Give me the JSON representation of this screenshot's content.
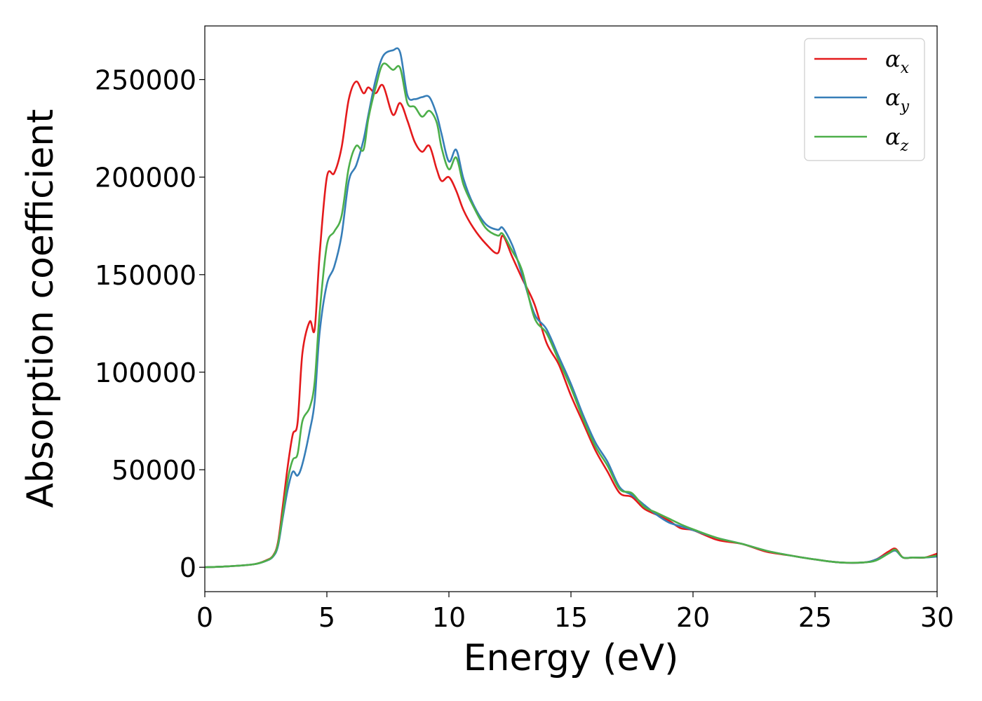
{
  "chart_data": {
    "type": "line",
    "xlabel": "Energy (eV)",
    "ylabel": "Absorption coefficient",
    "xlim": [
      0,
      30
    ],
    "ylim": [
      -12500,
      277500
    ],
    "xticks": [
      0,
      5,
      10,
      15,
      20,
      25,
      30
    ],
    "xtick_labels": [
      "0",
      "5",
      "10",
      "15",
      "20",
      "25",
      "30"
    ],
    "yticks": [
      0,
      50000,
      100000,
      150000,
      200000,
      250000
    ],
    "ytick_labels": [
      "0",
      "50000",
      "100000",
      "150000",
      "200000",
      "250000"
    ],
    "grid": false,
    "legend_position": "top-right",
    "series": [
      {
        "name": "α_x",
        "symbol": "α",
        "subscript": "x",
        "color": "#e41a1c",
        "x": [
          0,
          1,
          2,
          2.5,
          2.8,
          3.0,
          3.2,
          3.4,
          3.6,
          3.8,
          4.0,
          4.3,
          4.5,
          4.7,
          5.0,
          5.3,
          5.6,
          5.9,
          6.2,
          6.5,
          6.7,
          7.0,
          7.3,
          7.7,
          8.0,
          8.3,
          8.6,
          8.9,
          9.2,
          9.5,
          9.7,
          10.0,
          10.3,
          10.6,
          11.0,
          11.5,
          12.0,
          12.2,
          12.6,
          13.0,
          13.5,
          14.0,
          14.5,
          15.0,
          15.5,
          16.0,
          16.5,
          17.0,
          17.5,
          18.0,
          18.5,
          19.0,
          19.5,
          20.0,
          21.0,
          22.0,
          23.0,
          24.0,
          25.0,
          26.0,
          27.0,
          27.5,
          28.0,
          28.3,
          28.6,
          29.0,
          29.5,
          30.0
        ],
        "y": [
          0,
          500,
          1500,
          3500,
          6000,
          13000,
          32000,
          52000,
          68000,
          74000,
          110000,
          126000,
          122000,
          160000,
          200000,
          202000,
          215000,
          240000,
          249000,
          243000,
          246000,
          243000,
          247000,
          232000,
          238000,
          229000,
          218000,
          213000,
          216000,
          204000,
          198000,
          200000,
          193000,
          183000,
          174000,
          166000,
          161000,
          170000,
          159000,
          148000,
          135000,
          115000,
          104000,
          88000,
          74000,
          60000,
          49000,
          38000,
          36000,
          30000,
          27000,
          24000,
          20000,
          19000,
          14000,
          12000,
          8000,
          6000,
          4000,
          2500,
          2500,
          4000,
          8000,
          9500,
          5000,
          5000,
          5000,
          7000
        ]
      },
      {
        "name": "α_y",
        "symbol": "α",
        "subscript": "y",
        "color": "#377eb8",
        "x": [
          0,
          1,
          2,
          2.5,
          2.8,
          3.0,
          3.2,
          3.4,
          3.6,
          3.8,
          4.0,
          4.3,
          4.5,
          4.7,
          5.0,
          5.3,
          5.6,
          5.9,
          6.2,
          6.5,
          6.7,
          7.0,
          7.3,
          7.7,
          8.0,
          8.3,
          8.6,
          8.9,
          9.2,
          9.5,
          9.7,
          10.0,
          10.3,
          10.6,
          11.0,
          11.5,
          12.0,
          12.2,
          12.6,
          13.0,
          13.5,
          14.0,
          14.5,
          15.0,
          15.5,
          16.0,
          16.5,
          17.0,
          17.5,
          18.0,
          18.5,
          19.0,
          19.5,
          20.0,
          21.0,
          22.0,
          23.0,
          24.0,
          25.0,
          26.0,
          27.0,
          27.5,
          28.0,
          28.3,
          28.6,
          29.0,
          29.5,
          30.0
        ],
        "y": [
          0,
          500,
          1500,
          3200,
          5500,
          11000,
          26000,
          40000,
          49000,
          47000,
          53000,
          70000,
          85000,
          120000,
          145000,
          154000,
          170000,
          198000,
          206000,
          219000,
          232000,
          250000,
          262000,
          265000,
          264000,
          242000,
          240000,
          241000,
          241000,
          232000,
          222000,
          208000,
          214000,
          199000,
          186000,
          176000,
          173000,
          174000,
          165000,
          150000,
          130000,
          122000,
          108000,
          94000,
          78000,
          64000,
          54000,
          41000,
          37000,
          32000,
          27000,
          23000,
          21000,
          19000,
          15000,
          12000,
          8500,
          6000,
          4000,
          2500,
          2500,
          4000,
          7000,
          8500,
          5000,
          5000,
          5000,
          5500
        ]
      },
      {
        "name": "α_z",
        "symbol": "α",
        "subscript": "z",
        "color": "#4daf4a",
        "x": [
          0,
          1,
          2,
          2.5,
          2.8,
          3.0,
          3.2,
          3.4,
          3.6,
          3.8,
          4.0,
          4.3,
          4.5,
          4.7,
          5.0,
          5.3,
          5.6,
          5.9,
          6.2,
          6.5,
          6.7,
          7.0,
          7.3,
          7.7,
          8.0,
          8.3,
          8.6,
          8.9,
          9.2,
          9.5,
          9.7,
          10.0,
          10.3,
          10.6,
          11.0,
          11.5,
          12.0,
          12.2,
          12.6,
          13.0,
          13.5,
          14.0,
          14.5,
          15.0,
          15.5,
          16.0,
          16.5,
          17.0,
          17.5,
          18.0,
          18.5,
          19.0,
          19.5,
          20.0,
          21.0,
          22.0,
          23.0,
          24.0,
          25.0,
          26.0,
          27.0,
          27.5,
          28.0,
          28.3,
          28.6,
          29.0,
          29.5,
          30.0
        ],
        "y": [
          0,
          500,
          1500,
          3300,
          5800,
          12000,
          28000,
          45000,
          55000,
          58000,
          75000,
          82000,
          95000,
          130000,
          165000,
          172000,
          180000,
          205000,
          216000,
          214000,
          230000,
          246000,
          258000,
          255000,
          256000,
          238000,
          236000,
          231000,
          234000,
          228000,
          215000,
          204000,
          210000,
          196000,
          185000,
          174000,
          170000,
          171000,
          162000,
          152000,
          128000,
          120000,
          106000,
          92000,
          76000,
          62000,
          52000,
          40000,
          38000,
          31000,
          28000,
          25000,
          22000,
          19500,
          15000,
          12000,
          8500,
          6000,
          4000,
          2500,
          2500,
          3500,
          7000,
          9000,
          5000,
          5000,
          5000,
          6000
        ]
      }
    ]
  }
}
